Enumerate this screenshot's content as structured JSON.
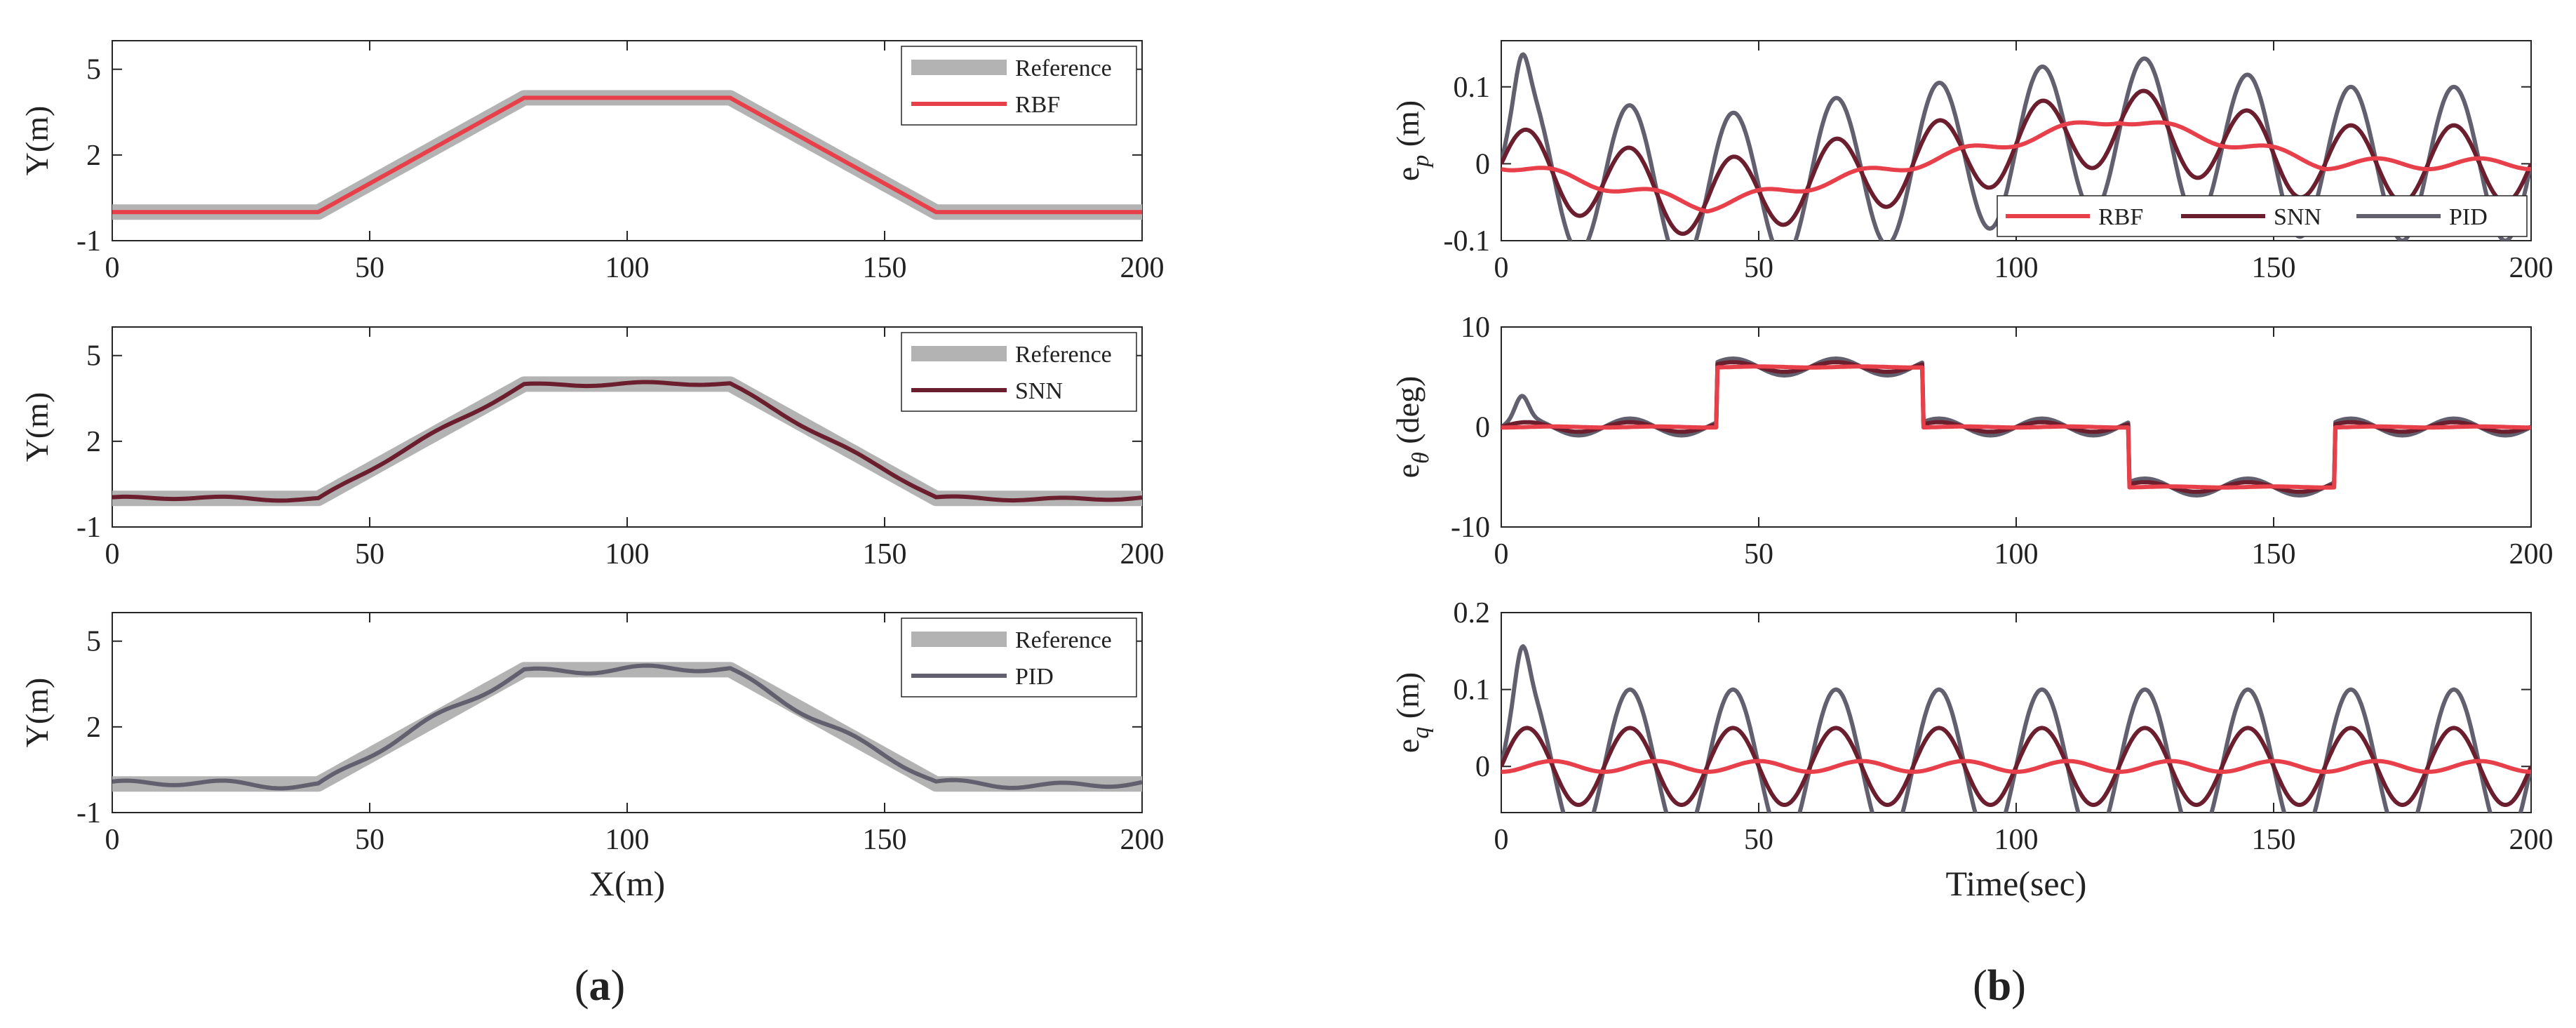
{
  "chart_data": [
    {
      "id": "a1",
      "type": "line",
      "side": "left",
      "xlabel": "",
      "ylabel": "Y(m)",
      "xlim": [
        0,
        200
      ],
      "ylim": [
        -1,
        6
      ],
      "xticks": [
        "0",
        "50",
        "100",
        "150",
        "200"
      ],
      "xtick_values": [
        0,
        50,
        100,
        150,
        200
      ],
      "yticks": [
        "-1",
        "2",
        "5"
      ],
      "ytick_values": [
        -1,
        2,
        5
      ],
      "legend": [
        "Reference",
        "RBF"
      ],
      "series": [
        {
          "name": "Reference",
          "color": "#b3b3b3",
          "style": "ref",
          "x": [
            0,
            40,
            80,
            120,
            160,
            200
          ],
          "y": [
            0,
            0,
            4,
            4,
            0,
            0
          ]
        },
        {
          "name": "RBF",
          "color": "#e8404a",
          "style": "track",
          "noise": 0.0,
          "x": [
            0,
            40,
            80,
            120,
            160,
            200
          ],
          "y": [
            0,
            0,
            4,
            4,
            0,
            0
          ]
        }
      ]
    },
    {
      "id": "a2",
      "type": "line",
      "side": "left",
      "xlabel": "",
      "ylabel": "Y(m)",
      "xlim": [
        0,
        200
      ],
      "ylim": [
        -1,
        6
      ],
      "xticks": [
        "0",
        "50",
        "100",
        "150",
        "200"
      ],
      "xtick_values": [
        0,
        50,
        100,
        150,
        200
      ],
      "yticks": [
        "-1",
        "2",
        "5"
      ],
      "ytick_values": [
        -1,
        2,
        5
      ],
      "legend": [
        "Reference",
        "SNN"
      ],
      "series": [
        {
          "name": "Reference",
          "color": "#b3b3b3",
          "style": "ref",
          "x": [
            0,
            40,
            80,
            120,
            160,
            200
          ],
          "y": [
            0,
            0,
            4,
            4,
            0,
            0
          ]
        },
        {
          "name": "SNN",
          "color": "#6b1f2e",
          "style": "track",
          "noise": 0.05,
          "x": [
            0,
            40,
            80,
            120,
            160,
            200
          ],
          "y": [
            0,
            0,
            4,
            4,
            0,
            0
          ]
        }
      ]
    },
    {
      "id": "a3",
      "type": "line",
      "side": "left",
      "xlabel": "X(m)",
      "ylabel": "Y(m)",
      "xlim": [
        0,
        200
      ],
      "ylim": [
        -1,
        6
      ],
      "xticks": [
        "0",
        "50",
        "100",
        "150",
        "200"
      ],
      "xtick_values": [
        0,
        50,
        100,
        150,
        200
      ],
      "yticks": [
        "-1",
        "2",
        "5"
      ],
      "ytick_values": [
        -1,
        2,
        5
      ],
      "legend": [
        "Reference",
        "PID"
      ],
      "series": [
        {
          "name": "Reference",
          "color": "#b3b3b3",
          "style": "ref",
          "x": [
            0,
            40,
            80,
            120,
            160,
            200
          ],
          "y": [
            0,
            0,
            4,
            4,
            0,
            0
          ]
        },
        {
          "name": "PID",
          "color": "#62606e",
          "style": "track",
          "noise": 0.1,
          "x": [
            0,
            40,
            80,
            120,
            160,
            200
          ],
          "y": [
            0,
            0,
            4,
            4,
            0,
            0
          ]
        }
      ]
    },
    {
      "id": "b1",
      "type": "line",
      "side": "right",
      "xlabel": "",
      "ylabel_main": "e",
      "ylabel_sub": "p",
      "ylabel_unit": " (m)",
      "xlim": [
        0,
        200
      ],
      "ylim": [
        -0.1,
        0.16
      ],
      "xticks": [
        "0",
        "50",
        "100",
        "150",
        "200"
      ],
      "xtick_values": [
        0,
        50,
        100,
        150,
        200
      ],
      "yticks": [
        "-0.1",
        "0",
        "0.1"
      ],
      "ytick_values": [
        -0.1,
        0,
        0.1
      ],
      "legend": [
        "RBF",
        "SNN",
        "PID"
      ],
      "legend_position": "bottom-right",
      "osc": {
        "period": 20,
        "snn_amp": 0.05,
        "pid_amp": 0.1,
        "rbf_amp": 0.007,
        "pid_spike": 0.15
      },
      "offsets": {
        "x": [
          0,
          40,
          80,
          120,
          160,
          200
        ],
        "y": [
          0,
          -0.055,
          0,
          0.06,
          0,
          0
        ]
      },
      "series": [
        {
          "name": "RBF",
          "color": "#e8404a"
        },
        {
          "name": "SNN",
          "color": "#6b1f2e"
        },
        {
          "name": "PID",
          "color": "#62606e"
        }
      ]
    },
    {
      "id": "b2",
      "type": "line",
      "side": "right",
      "xlabel": "",
      "ylabel_main": "e",
      "ylabel_sub": "θ",
      "ylabel_unit": " (deg)",
      "xlim": [
        0,
        200
      ],
      "ylim": [
        -10,
        10
      ],
      "xticks": [
        "0",
        "50",
        "100",
        "150",
        "200"
      ],
      "xtick_values": [
        0,
        50,
        100,
        150,
        200
      ],
      "yticks": [
        "-10",
        "0",
        "10"
      ],
      "ytick_values": [
        -10,
        0,
        10
      ],
      "steps": {
        "x": [
          0,
          42,
          82,
          122,
          162,
          200
        ],
        "y": [
          0,
          6,
          0,
          -6,
          0,
          0
        ]
      },
      "osc": {
        "period": 20,
        "snn_amp": 0.8,
        "pid_amp": 1.2,
        "rbf_amp": 0.05,
        "pid_spike": 3.5
      },
      "series": [
        {
          "name": "RBF",
          "color": "#e8404a"
        },
        {
          "name": "SNN",
          "color": "#6b1f2e"
        },
        {
          "name": "PID",
          "color": "#62606e"
        }
      ]
    },
    {
      "id": "b3",
      "type": "line",
      "side": "right",
      "xlabel": "Time(sec)",
      "ylabel_main": "e",
      "ylabel_sub": "q",
      "ylabel_unit": " (m)",
      "xlim": [
        0,
        200
      ],
      "ylim": [
        -0.06,
        0.2
      ],
      "xticks": [
        "0",
        "50",
        "100",
        "150",
        "200"
      ],
      "xtick_values": [
        0,
        50,
        100,
        150,
        200
      ],
      "yticks": [
        "0",
        "0.1",
        "0.2"
      ],
      "ytick_values": [
        0,
        0.1,
        0.2
      ],
      "osc": {
        "period": 20,
        "snn_amp": 0.05,
        "pid_amp": 0.1,
        "rbf_amp": 0.007,
        "pid_spike": 0.16
      },
      "offsets": {
        "x": [
          0,
          200
        ],
        "y": [
          0,
          0
        ]
      },
      "series": [
        {
          "name": "RBF",
          "color": "#e8404a"
        },
        {
          "name": "SNN",
          "color": "#6b1f2e"
        },
        {
          "name": "PID",
          "color": "#62606e"
        }
      ]
    }
  ],
  "panel_labels": {
    "a": {
      "open": "(",
      "letter": "a",
      "close": ")"
    },
    "b": {
      "open": "(",
      "letter": "b",
      "close": ")"
    }
  }
}
